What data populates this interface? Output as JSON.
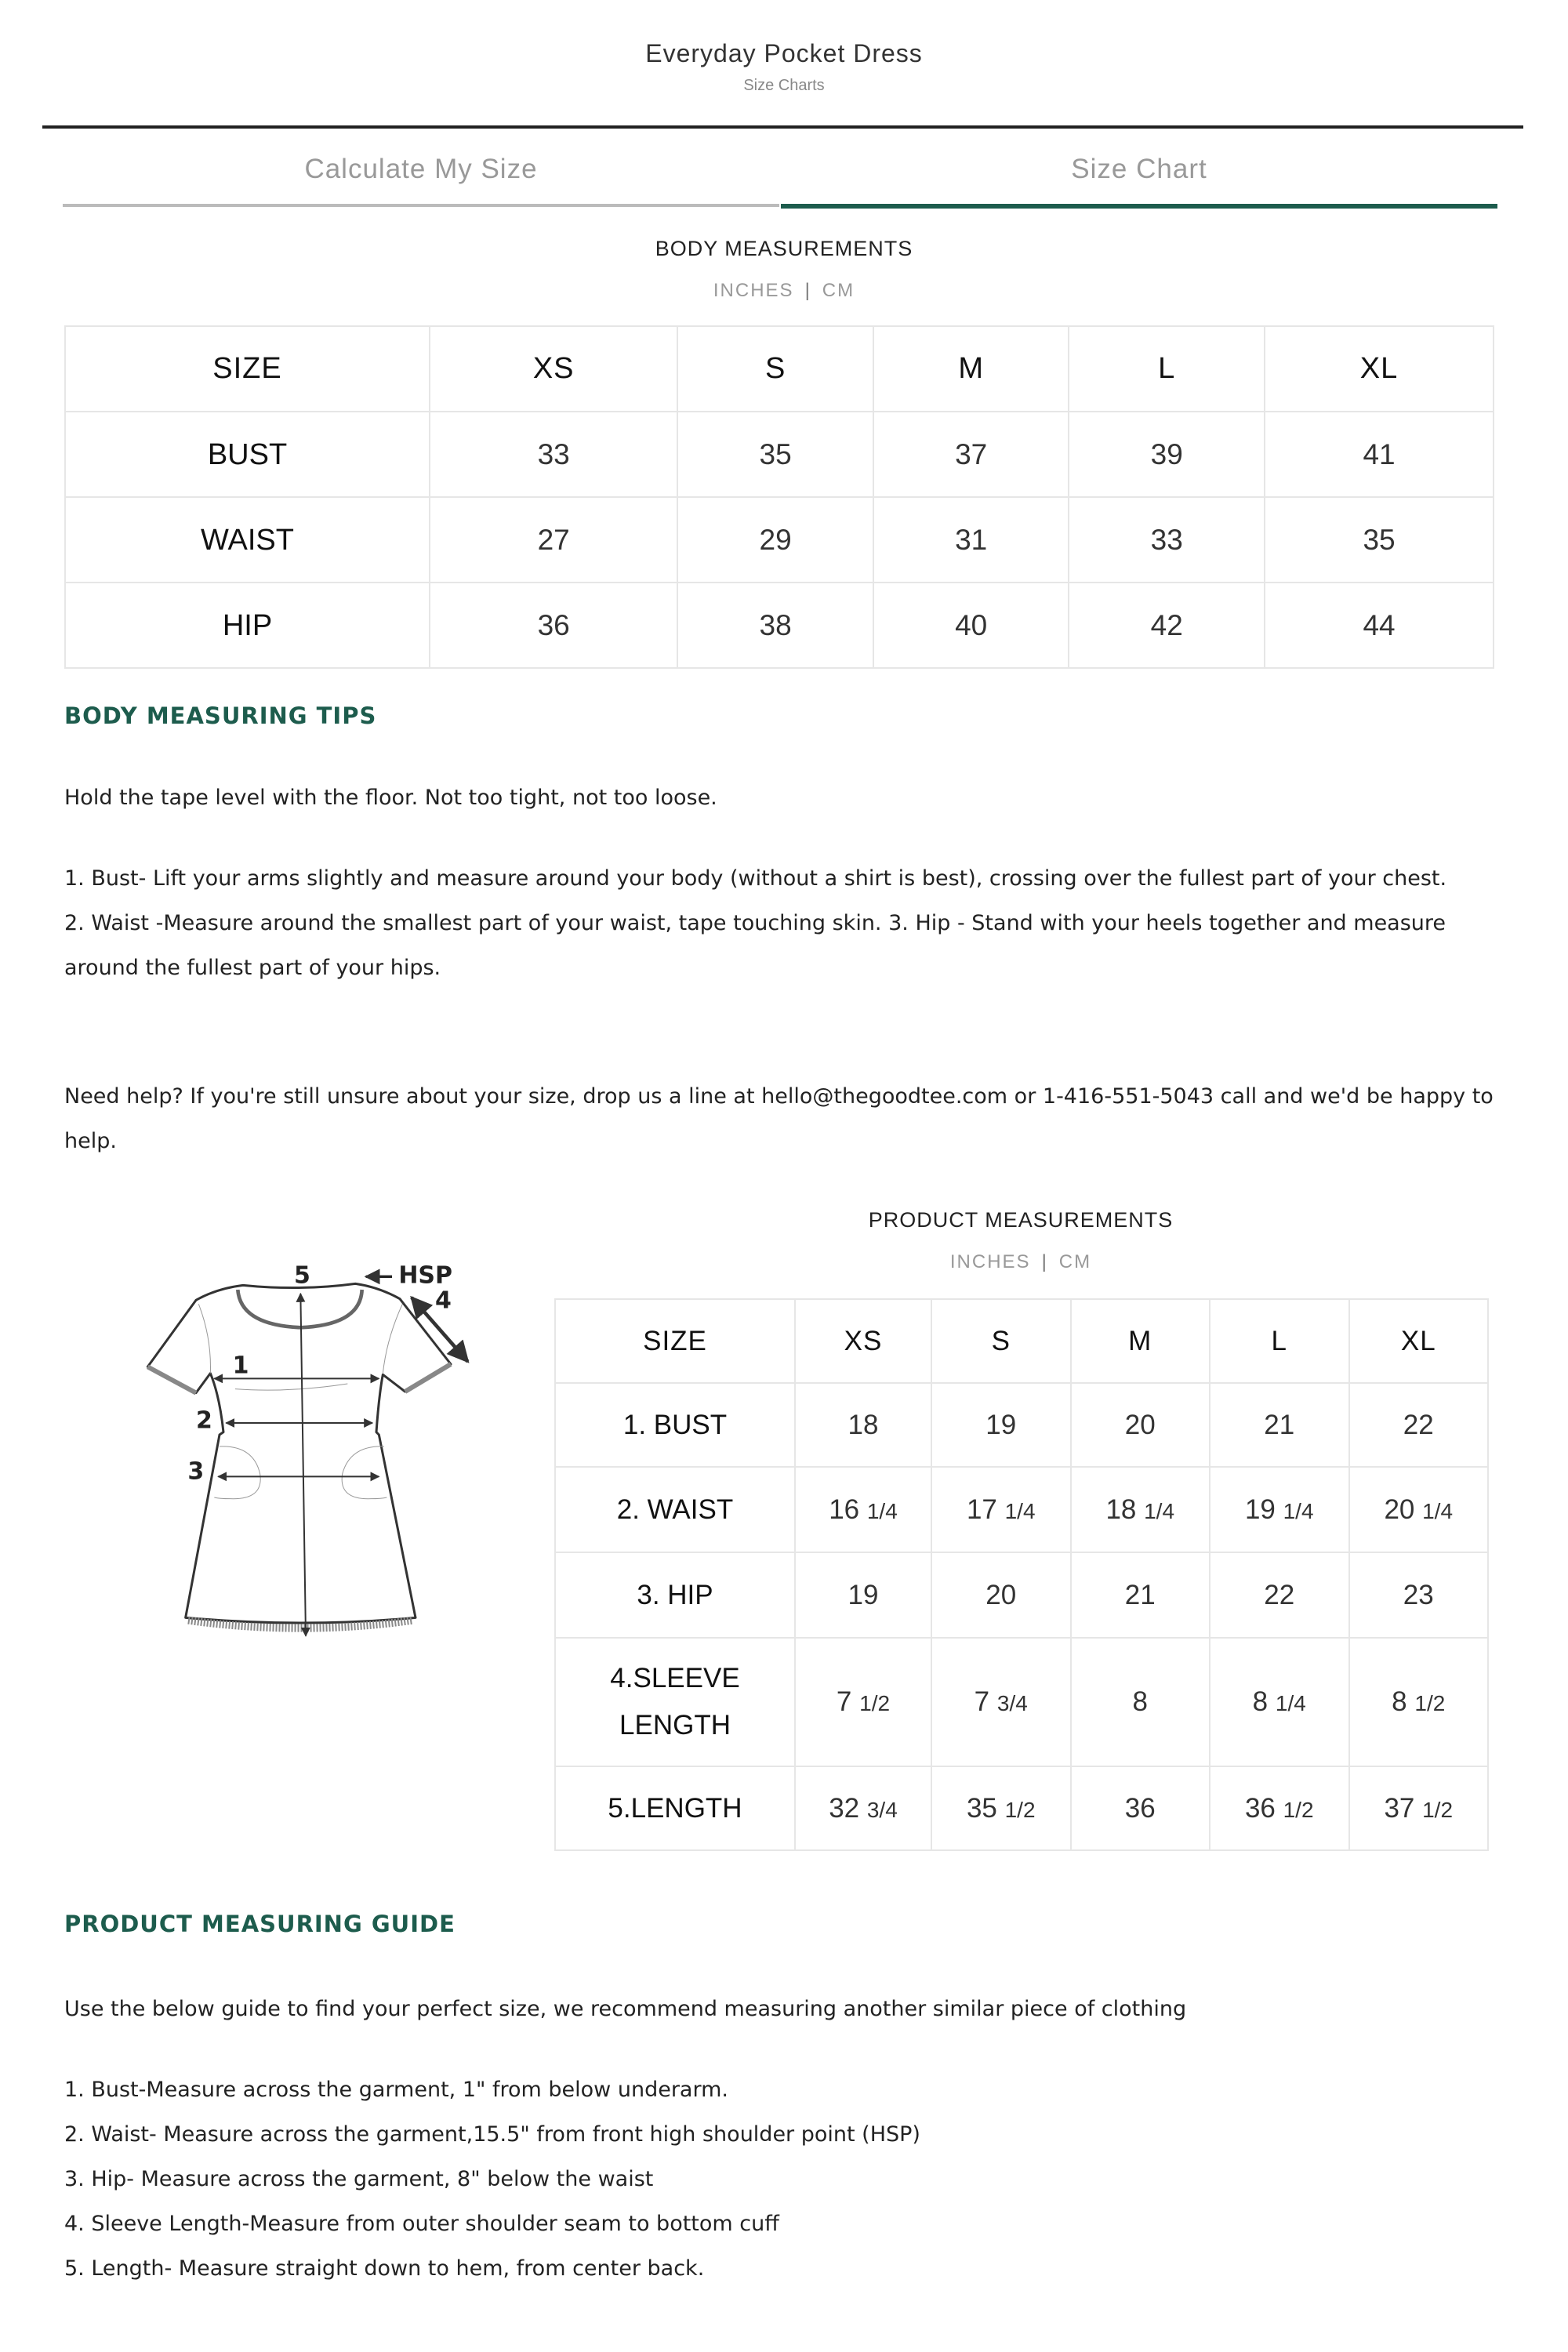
{
  "header": {
    "title": "Everyday Pocket Dress",
    "subtitle": "Size Charts"
  },
  "tabs": [
    {
      "label": "Calculate My Size",
      "active": false
    },
    {
      "label": "Size Chart",
      "active": true
    }
  ],
  "colors": {
    "accent": "#1d5c4d",
    "inactive_tab": "#999999",
    "border": "#e6e6e6"
  },
  "body_measurements": {
    "title": "BODY MEASUREMENTS",
    "units": [
      "INCHES",
      "CM"
    ],
    "unit_separator": "|",
    "headers": [
      "SIZE",
      "XS",
      "S",
      "M",
      "L",
      "XL"
    ],
    "rows": [
      [
        "BUST",
        "33",
        "35",
        "37",
        "39",
        "41"
      ],
      [
        "WAIST",
        "27",
        "29",
        "31",
        "33",
        "35"
      ],
      [
        "HIP",
        "36",
        "38",
        "40",
        "42",
        "44"
      ]
    ]
  },
  "body_tips": {
    "heading": "BODY MEASURING TIPS",
    "intro": "Hold the tape level with the floor. Not too tight, not too loose.",
    "p1": "1. Bust- Lift your arms slightly and measure around your body (without a shirt is best), crossing over the fullest part of your chest.",
    "p2": "2. Waist -Measure around the smallest part of your waist, tape touching skin. 3. Hip - Stand with your heels together and measure around the fullest part of your hips.",
    "help_prefix": "Need help? If you're still unsure about your size, drop us a line at ",
    "email": "hello@thegoodtee.com",
    "help_mid": " or ",
    "phone": "1-416-551-5043",
    "help_suffix": " call and we'd be happy to help."
  },
  "product_measurements": {
    "title": "PRODUCT MEASUREMENTS",
    "units": [
      "INCHES",
      "CM"
    ],
    "unit_separator": "|",
    "diagram_labels": {
      "hsp": "HSP",
      "n1": "1",
      "n2": "2",
      "n3": "3",
      "n4": "4",
      "n5": "5"
    },
    "headers": [
      "SIZE",
      "XS",
      "S",
      "M",
      "L",
      "XL"
    ],
    "rows": [
      [
        "1. BUST",
        "18",
        "19",
        "20",
        "21",
        "22"
      ],
      [
        "2. WAIST",
        "16 1/4",
        "17 1/4",
        "18 1/4",
        "19 1/4",
        "20 1/4"
      ],
      [
        "3. HIP",
        "19",
        "20",
        "21",
        "22",
        "23"
      ],
      [
        "4.SLEEVE LENGTH",
        "7 1/2",
        "7 3/4",
        "8",
        "8 1/4",
        "8 1/2"
      ],
      [
        "5.LENGTH",
        "32 3/4",
        "35 1/2",
        "36",
        "36 1/2",
        "37 1/2"
      ]
    ]
  },
  "product_guide": {
    "heading": "PRODUCT MEASURING GUIDE",
    "intro": "Use the below guide to find your perfect size, we recommend measuring another similar piece of clothing",
    "items": [
      "1. Bust-Measure across the garment, 1\" from below underarm.",
      "2. Waist- Measure across the garment,15.5\" from front high shoulder point (HSP)",
      "3. Hip- Measure across the garment, 8\" below the waist",
      "4. Sleeve Length-Measure from outer shoulder seam to bottom cuff",
      "5. Length- Measure straight down to hem, from center back."
    ]
  }
}
